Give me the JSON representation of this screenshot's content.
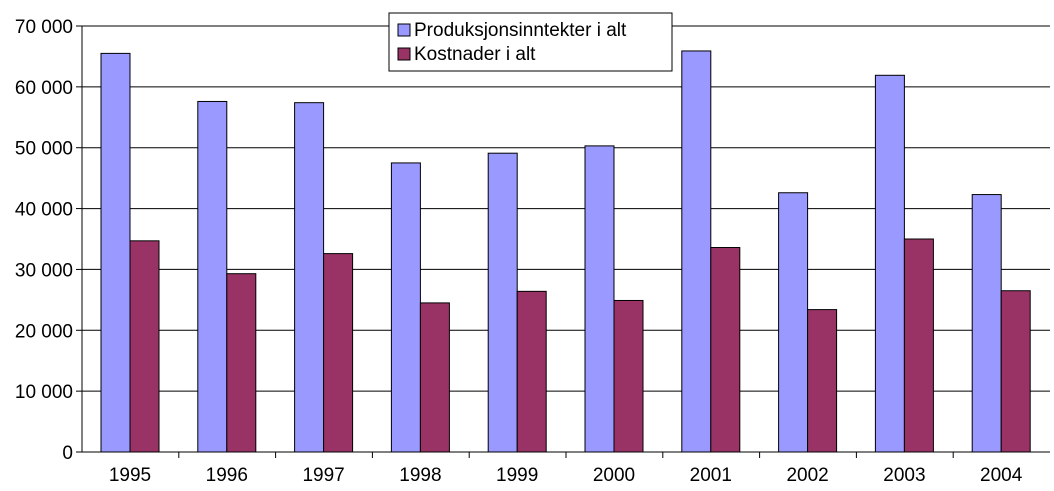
{
  "chart_data": {
    "type": "bar",
    "categories": [
      "1995",
      "1996",
      "1997",
      "1998",
      "1999",
      "2000",
      "2001",
      "2002",
      "2003",
      "2004"
    ],
    "series": [
      {
        "name": "Produksjonsinntekter i alt",
        "color": "#9999ff",
        "values": [
          65500,
          57600,
          57400,
          47500,
          49100,
          50300,
          65900,
          42600,
          61900,
          42300
        ]
      },
      {
        "name": "Kostnader i alt",
        "color": "#993366",
        "values": [
          34700,
          29300,
          32600,
          24500,
          26400,
          24900,
          33600,
          23400,
          35000,
          26500
        ]
      }
    ],
    "ylim": [
      0,
      70000
    ],
    "yticks": [
      0,
      10000,
      20000,
      30000,
      40000,
      50000,
      60000,
      70000
    ],
    "ytick_labels": [
      "0",
      "10 000",
      "20 000",
      "30 000",
      "40 000",
      "50 000",
      "60 000",
      "70 000"
    ],
    "grid": true,
    "legend_position": "top-center",
    "title": "",
    "xlabel": "",
    "ylabel": ""
  }
}
